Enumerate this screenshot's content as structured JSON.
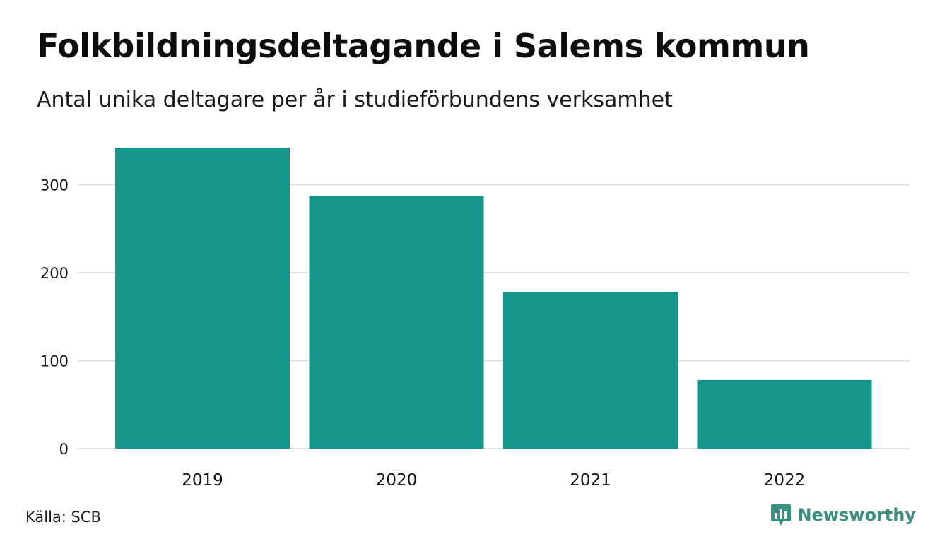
{
  "title": "Folkbildningsdeltagande i Salems kommun",
  "subtitle": "Antal unika deltagare per år i studieförbundens verksamhet",
  "source": "Källa: SCB",
  "brand": {
    "name": "Newsworthy",
    "icon": "newsworthy-logo-icon",
    "color": "#3a8f7f"
  },
  "colors": {
    "bar": "#16958a",
    "grid": "#dedee6",
    "text": "#111111"
  },
  "chart_data": {
    "type": "bar",
    "title": "Folkbildningsdeltagande i Salems kommun",
    "subtitle": "Antal unika deltagare per år i studieförbundens verksamhet",
    "categories": [
      "2019",
      "2020",
      "2021",
      "2022"
    ],
    "values": [
      342,
      287,
      178,
      78
    ],
    "xlabel": "",
    "ylabel": "",
    "ylim": [
      0,
      342
    ],
    "yticks": [
      0,
      100,
      200,
      300
    ],
    "grid": true,
    "legend": "none"
  }
}
